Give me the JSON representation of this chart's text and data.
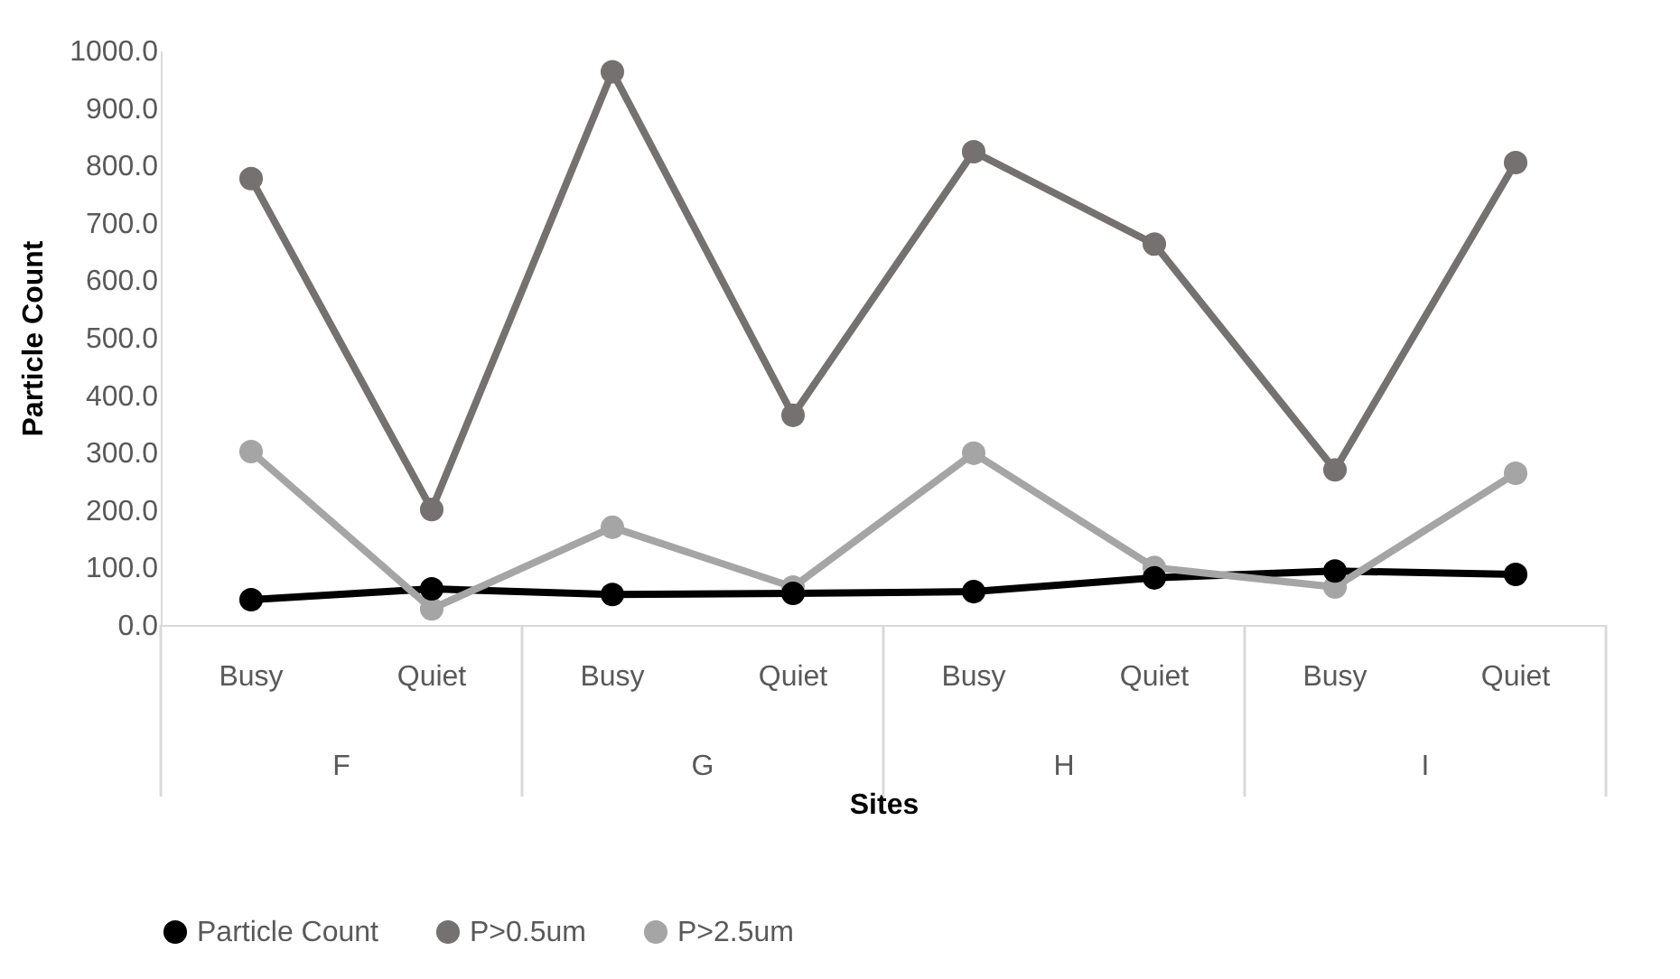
{
  "chart_data": {
    "type": "line",
    "xlabel": "Sites",
    "ylabel": "Particle Count",
    "categories": [
      "Busy",
      "Quiet",
      "Busy",
      "Quiet",
      "Busy",
      "Quiet",
      "Busy",
      "Quiet"
    ],
    "annotations": [
      "F",
      "G",
      "H",
      "I"
    ],
    "series": [
      {
        "name": "Particle Count",
        "color": "#000000",
        "values": [
          44,
          63,
          53,
          55,
          58,
          82,
          94,
          88
        ]
      },
      {
        "name": "P>0.5um",
        "color": "#767171",
        "values": [
          777,
          201,
          963,
          365,
          824,
          663,
          270,
          805
        ]
      },
      {
        "name": "P>2.5um",
        "color": "#a5a5a5",
        "values": [
          302,
          28,
          170,
          66,
          299,
          100,
          66,
          264
        ]
      }
    ],
    "ylim": [
      0,
      1000
    ],
    "yticks": [
      {
        "value": 0,
        "label": "0.0"
      },
      {
        "value": 100,
        "label": "100.0"
      },
      {
        "value": 200,
        "label": "200.0"
      },
      {
        "value": 300,
        "label": "300.0"
      },
      {
        "value": 400,
        "label": "400.0"
      },
      {
        "value": 500,
        "label": "500.0"
      },
      {
        "value": 600,
        "label": "600.0"
      },
      {
        "value": 700,
        "label": "700.0"
      },
      {
        "value": 800,
        "label": "800.0"
      },
      {
        "value": 900,
        "label": "900.0"
      },
      {
        "value": 1000,
        "label": "1000.0"
      }
    ],
    "grid": false,
    "legend": "bottom",
    "marker": "circle",
    "line_style": "solid"
  }
}
